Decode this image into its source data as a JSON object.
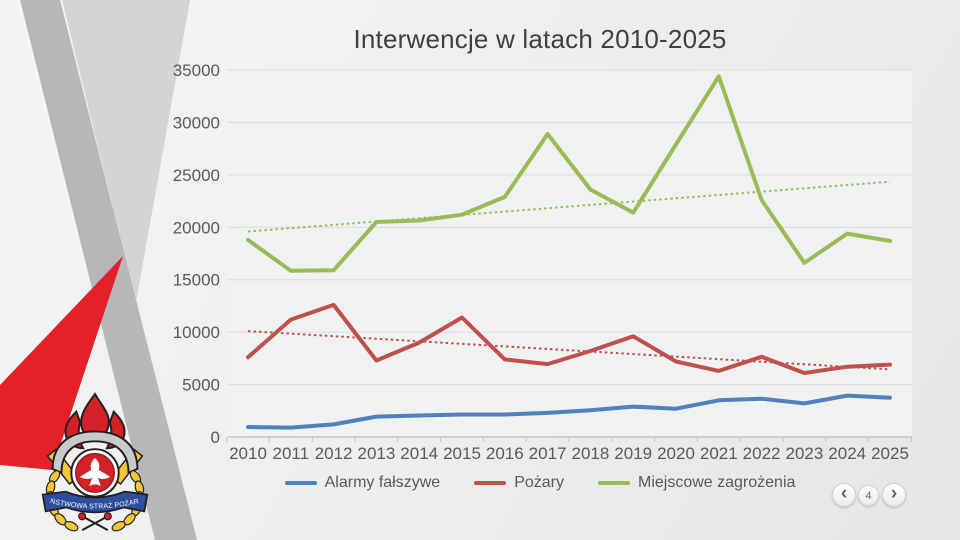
{
  "slide": {
    "title": "Interwencje w latach 2010-2025",
    "logo_banner": "PAŃSTWOWA STRAŻ POŻARNA"
  },
  "nav": {
    "prev_icon": "‹",
    "next_icon": "›",
    "page": "4"
  },
  "chart_data": {
    "type": "line",
    "title": "Interwencje w latach 2010-2025",
    "categories": [
      "2010",
      "2011",
      "2012",
      "2013",
      "2014",
      "2015",
      "2016",
      "2017",
      "2018",
      "2019",
      "2020",
      "2021",
      "2022",
      "2023",
      "2024",
      "2025"
    ],
    "series": [
      {
        "name": "Alarmy fałszywe",
        "color": "#4F81BD",
        "values": [
          950,
          900,
          1200,
          1950,
          2050,
          2150,
          2150,
          2300,
          2550,
          2900,
          2700,
          3500,
          3650,
          3200,
          3950,
          3750
        ]
      },
      {
        "name": "Pożary",
        "color": "#C0504D",
        "values": [
          7600,
          11200,
          12600,
          7300,
          9000,
          11400,
          7400,
          6950,
          8200,
          9600,
          7200,
          6300,
          7650,
          6100,
          6700,
          6900
        ]
      },
      {
        "name": "Miejscowe zagrożenia",
        "color": "#9BBB59",
        "values": [
          18800,
          15850,
          15900,
          20500,
          20650,
          21200,
          22900,
          28900,
          23600,
          21400,
          27900,
          34400,
          22600,
          16600,
          19400,
          18700
        ]
      }
    ],
    "trendlines": [
      {
        "series": "Pożary",
        "color": "#C0504D",
        "start": 10100,
        "end": 6450,
        "style": "dotted"
      },
      {
        "series": "Miejscowe zagrożenia",
        "color": "#9BBB59",
        "start": 19600,
        "end": 24350,
        "style": "dotted"
      }
    ],
    "ylim": [
      0,
      35000
    ],
    "ytick_step": 5000,
    "grid": true,
    "legend_position": "bottom"
  }
}
